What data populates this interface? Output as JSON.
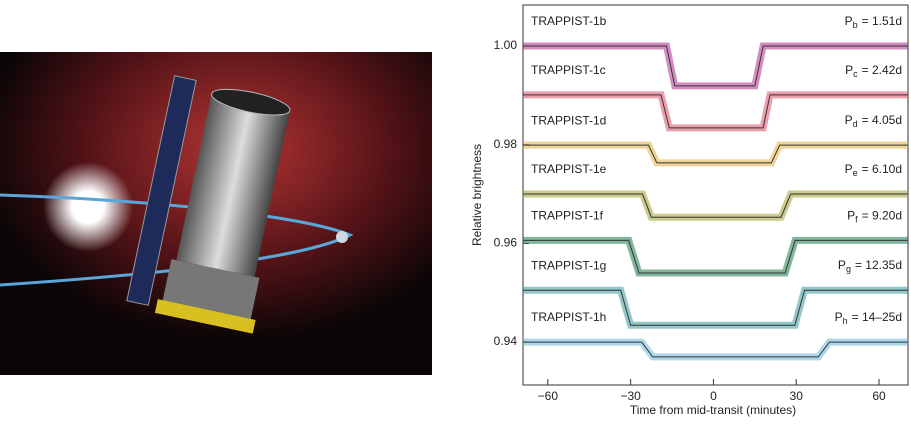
{
  "chart_data": {
    "type": "line",
    "y_label": "Relative brightness",
    "x_label": "Time from mid-transit (minutes)",
    "xlim": [
      -69,
      70.5
    ],
    "ylim": [
      0.9313,
      1.0083
    ],
    "xticks": [
      {
        "value": -60,
        "label": "−60"
      },
      {
        "value": -30,
        "label": "−30"
      },
      0,
      30,
      60
    ],
    "yticks": [
      0.94,
      0.96,
      0.98,
      {
        "value": 1,
        "label": "1.00"
      }
    ],
    "series": [
      {
        "name": "TRAPPIST-1b",
        "period": {
          "symbol": "P",
          "subscript": "b",
          "text": "= 1.51d"
        },
        "color": "#b0308f",
        "x": [
          -69,
          -17,
          -14,
          15,
          18,
          70.5
        ],
        "values": [
          1.0,
          1.0,
          0.9919,
          0.9919,
          1.0,
          1.0
        ]
      },
      {
        "name": "TRAPPIST-1c",
        "period": {
          "symbol": "P",
          "subscript": "c",
          "text": "= 2.42d"
        },
        "color": "#d9506a",
        "x": [
          -69,
          -19,
          -16,
          18,
          20.5,
          70.5
        ],
        "values": [
          0.9901,
          0.9901,
          0.9834,
          0.9834,
          0.9901,
          0.9901
        ]
      },
      {
        "name": "TRAPPIST-1d",
        "period": {
          "symbol": "P",
          "subscript": "d",
          "text": "= 4.05d"
        },
        "color": "#e0b040",
        "x": [
          -69,
          -23.5,
          -20.5,
          21,
          24,
          70.5
        ],
        "values": [
          0.9799,
          0.9799,
          0.9763,
          0.9763,
          0.9799,
          0.9799
        ]
      },
      {
        "name": "TRAPPIST-1e",
        "period": {
          "symbol": "P",
          "subscript": "e",
          "text": "= 6.10d"
        },
        "color": "#a0a030",
        "x": [
          -69,
          -25.7,
          -22.5,
          24.5,
          28,
          70.5
        ],
        "values": [
          0.97,
          0.97,
          0.9653,
          0.9653,
          0.97,
          0.97
        ]
      },
      {
        "name": "TRAPPIST-1f",
        "period": {
          "symbol": "P",
          "subscript": "f",
          "text": "= 9.20d"
        },
        "color": "#1a7a4a",
        "x": [
          -69,
          -30.7,
          -27,
          26,
          29.6,
          70.5
        ],
        "values": [
          0.9606,
          0.9606,
          0.954,
          0.954,
          0.9606,
          0.9606
        ]
      },
      {
        "name": "TRAPPIST-1g",
        "period": {
          "symbol": "P",
          "subscript": "g",
          "text": "= 12.35d"
        },
        "color": "#3a9aa0",
        "x": [
          -69,
          -33.6,
          -30,
          29.5,
          33,
          70.5
        ],
        "values": [
          0.9505,
          0.9505,
          0.9434,
          0.9434,
          0.9505,
          0.9505
        ]
      },
      {
        "name": "TRAPPIST-1h",
        "period": {
          "symbol": "P",
          "subscript": "h",
          "text": "= 14–25d"
        },
        "color": "#6ab8d8",
        "x": [
          -69,
          -26,
          -22,
          38,
          42,
          70.5
        ],
        "values": [
          0.94,
          0.94,
          0.937,
          0.937,
          0.94,
          0.94
        ]
      }
    ]
  }
}
